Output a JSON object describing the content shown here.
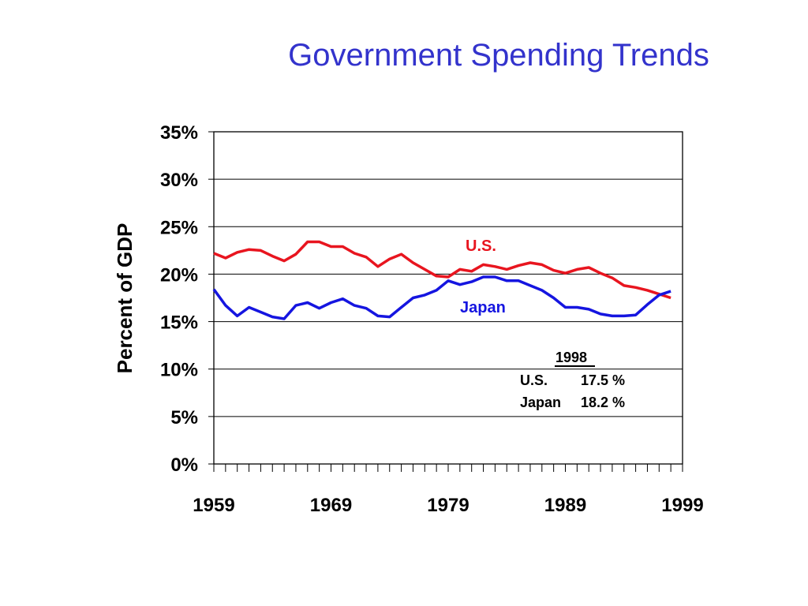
{
  "colors": {
    "title": "#3333cc",
    "us": "#e8151f",
    "japan": "#1515e0",
    "grid": "#000000"
  },
  "chart_data": {
    "type": "line",
    "title": "Government Spending Trends",
    "xlabel": "",
    "ylabel": "Percent of GDP",
    "xlim": [
      1959,
      1999
    ],
    "ylim": [
      0,
      35
    ],
    "y_ticks": [
      0,
      5,
      10,
      15,
      20,
      25,
      30,
      35
    ],
    "y_tick_labels": [
      "0%",
      "5%",
      "10%",
      "15%",
      "20%",
      "25%",
      "30%",
      "35%"
    ],
    "x_ticks": [
      1959,
      1969,
      1979,
      1989,
      1999
    ],
    "x_tick_labels": [
      "1959",
      "1969",
      "1979",
      "1989",
      "1999"
    ],
    "grid": true,
    "x": [
      1959,
      1960,
      1961,
      1962,
      1963,
      1964,
      1965,
      1966,
      1967,
      1968,
      1969,
      1970,
      1971,
      1972,
      1973,
      1974,
      1975,
      1976,
      1977,
      1978,
      1979,
      1980,
      1981,
      1982,
      1983,
      1984,
      1985,
      1986,
      1987,
      1988,
      1989,
      1990,
      1991,
      1992,
      1993,
      1994,
      1995,
      1996,
      1997,
      1998
    ],
    "series": [
      {
        "name": "U.S.",
        "color": "#e8151f",
        "values": [
          22.2,
          21.7,
          22.3,
          22.6,
          22.5,
          21.9,
          21.4,
          22.1,
          23.4,
          23.4,
          22.9,
          22.9,
          22.2,
          21.8,
          20.8,
          21.6,
          22.1,
          21.2,
          20.5,
          19.8,
          19.7,
          20.5,
          20.3,
          21.0,
          20.8,
          20.5,
          20.9,
          21.2,
          21.0,
          20.4,
          20.1,
          20.5,
          20.7,
          20.1,
          19.6,
          18.8,
          18.6,
          18.3,
          17.9,
          17.5
        ]
      },
      {
        "name": "Japan",
        "color": "#1515e0",
        "values": [
          18.4,
          16.7,
          15.6,
          16.5,
          16.0,
          15.5,
          15.3,
          16.7,
          17.0,
          16.4,
          17.0,
          17.4,
          16.7,
          16.4,
          15.6,
          15.5,
          16.5,
          17.5,
          17.8,
          18.3,
          19.3,
          18.9,
          19.2,
          19.7,
          19.7,
          19.3,
          19.3,
          18.8,
          18.3,
          17.5,
          16.5,
          16.5,
          16.3,
          15.8,
          15.6,
          15.6,
          15.7,
          16.8,
          17.8,
          18.2
        ]
      }
    ],
    "annotation": {
      "year": "1998",
      "rows": [
        {
          "label": "U.S.",
          "value": "17.5 %"
        },
        {
          "label": "Japan",
          "value": "18.2 %"
        }
      ]
    }
  }
}
